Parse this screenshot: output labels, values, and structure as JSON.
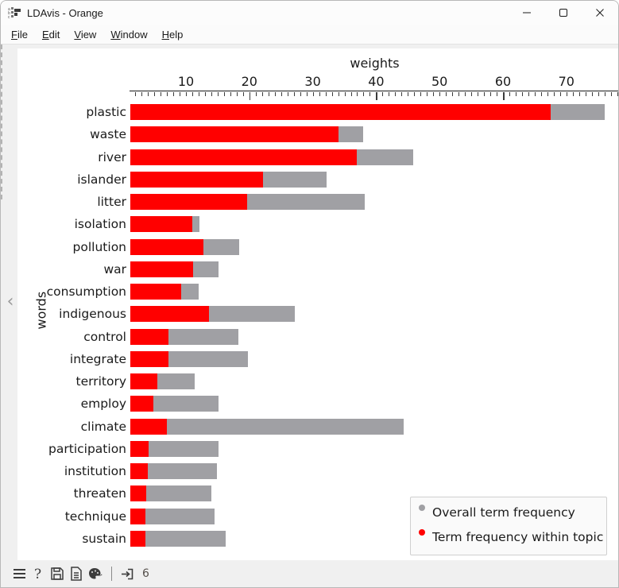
{
  "window": {
    "title": "LDAvis - Orange",
    "icons": {
      "app": "ldavis-app-icon",
      "minimize": "–",
      "maximize": "▢",
      "close": "✕"
    }
  },
  "menu": {
    "items": [
      "File",
      "Edit",
      "View",
      "Window",
      "Help"
    ]
  },
  "side": {
    "collapse_chevron": "‹"
  },
  "chart_data": {
    "type": "bar",
    "orientation": "horizontal",
    "xlabel": "weights",
    "ylabel": "words",
    "x_range": [
      1.23,
      78.3
    ],
    "x_tick_labels": [
      10,
      20,
      30,
      40,
      50,
      60,
      70
    ],
    "x_major_ticks": [
      20,
      40,
      60
    ],
    "x_minor_tick_step": 1,
    "grid": false,
    "legend_position": "bottom-right",
    "categories": [
      "plastic",
      "waste",
      "river",
      "islander",
      "litter",
      "isolation",
      "pollution",
      "war",
      "consumption",
      "indigenous",
      "control",
      "integrate",
      "territory",
      "employ",
      "climate",
      "participation",
      "institution",
      "threaten",
      "technique",
      "sustain"
    ],
    "series": [
      {
        "name": "Overall term frequency",
        "color": "#a0a0a4",
        "values": [
          76.0,
          38.0,
          45.8,
          32.2,
          38.2,
          12.1,
          18.4,
          15.1,
          12.0,
          27.2,
          18.3,
          19.8,
          11.4,
          15.1,
          44.3,
          15.1,
          14.9,
          14.0,
          14.5,
          16.2
        ]
      },
      {
        "name": "Term frequency within topic",
        "color": "#ff0000",
        "values": [
          67.5,
          34.0,
          37.0,
          22.2,
          19.6,
          11.0,
          12.8,
          11.1,
          9.2,
          13.6,
          7.2,
          7.2,
          5.5,
          4.9,
          7.0,
          4.1,
          4.0,
          3.7,
          3.6,
          3.6
        ]
      }
    ]
  },
  "status_bar": {
    "icons": [
      "menu-icon",
      "help-icon",
      "save-image-icon",
      "report-icon",
      "visual-settings-icon",
      "input-arrow-icon"
    ],
    "input_count": "6"
  }
}
